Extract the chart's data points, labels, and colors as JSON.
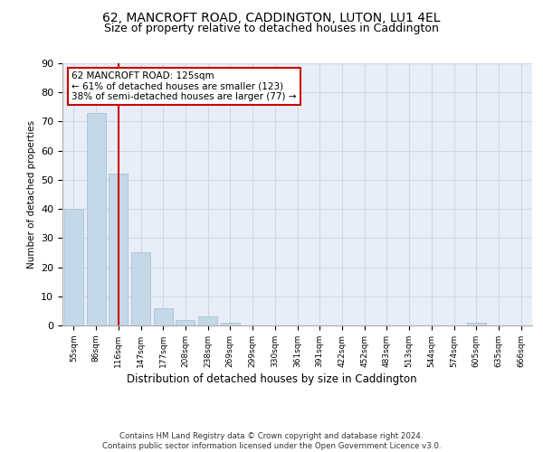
{
  "title1": "62, MANCROFT ROAD, CADDINGTON, LUTON, LU1 4EL",
  "title2": "Size of property relative to detached houses in Caddington",
  "xlabel": "Distribution of detached houses by size in Caddington",
  "ylabel": "Number of detached properties",
  "categories": [
    "55sqm",
    "86sqm",
    "116sqm",
    "147sqm",
    "177sqm",
    "208sqm",
    "238sqm",
    "269sqm",
    "299sqm",
    "330sqm",
    "361sqm",
    "391sqm",
    "422sqm",
    "452sqm",
    "483sqm",
    "513sqm",
    "544sqm",
    "574sqm",
    "605sqm",
    "635sqm",
    "666sqm"
  ],
  "values": [
    40,
    73,
    52,
    25,
    6,
    2,
    3,
    1,
    0,
    0,
    0,
    0,
    0,
    0,
    0,
    0,
    0,
    0,
    1,
    0,
    0
  ],
  "bar_color": "#c5d8e8",
  "bar_edge_color": "#a0bcd0",
  "annotation_text": "62 MANCROFT ROAD: 125sqm\n← 61% of detached houses are smaller (123)\n38% of semi-detached houses are larger (77) →",
  "annotation_box_color": "#ffffff",
  "annotation_box_edge": "#cc0000",
  "redline_color": "#cc0000",
  "ylim": [
    0,
    90
  ],
  "yticks": [
    0,
    10,
    20,
    30,
    40,
    50,
    60,
    70,
    80,
    90
  ],
  "grid_color": "#d0d8e8",
  "bg_color": "#e8eef8",
  "footer": "Contains HM Land Registry data © Crown copyright and database right 2024.\nContains public sector information licensed under the Open Government Licence v3.0.",
  "title1_fontsize": 10,
  "title2_fontsize": 9
}
